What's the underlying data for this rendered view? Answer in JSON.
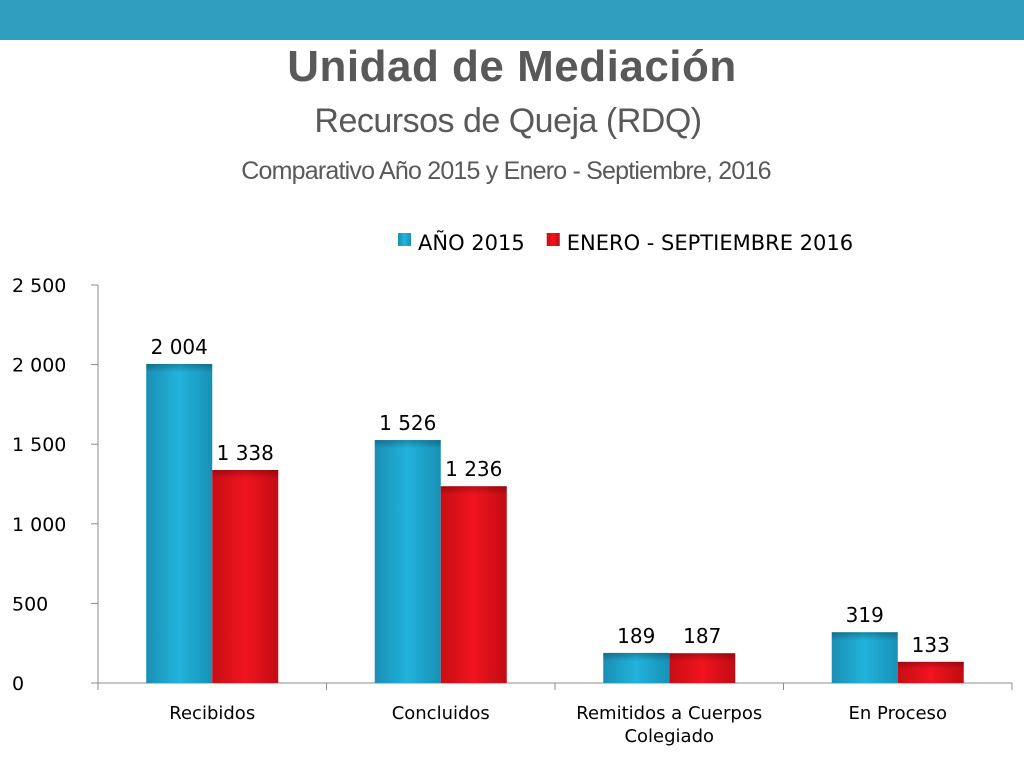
{
  "header": {
    "title": "Unidad de Mediación",
    "subtitle": "Recursos de Queja (RDQ)",
    "caption": "Comparativo Año 2015 y Enero - Septiembre, 2016",
    "bar_color": "#2e9fbf"
  },
  "chart_data": {
    "type": "bar",
    "categories": [
      "Recibidos",
      "Concluidos",
      "Remitidos a Cuerpos Colegiado",
      "En Proceso"
    ],
    "series": [
      {
        "name": "AÑO 2015",
        "values": [
          2004,
          1526,
          189,
          319
        ],
        "labels": [
          "2 004",
          "1 526",
          "189",
          "319"
        ],
        "color": "#1fa7cf"
      },
      {
        "name": "ENERO - SEPTIEMBRE 2016",
        "values": [
          1338,
          1236,
          187,
          133
        ],
        "labels": [
          "1 338",
          "1 236",
          "187",
          "133"
        ],
        "color": "#e8111b"
      }
    ],
    "ylim": [
      0,
      2500
    ],
    "yticks": [
      0,
      500,
      1000,
      1500,
      2000,
      2500
    ],
    "ytick_labels": [
      "0",
      "500",
      "1 000",
      "1 500",
      "2 000",
      "2 500"
    ],
    "legend": "top-center",
    "grid": false
  }
}
